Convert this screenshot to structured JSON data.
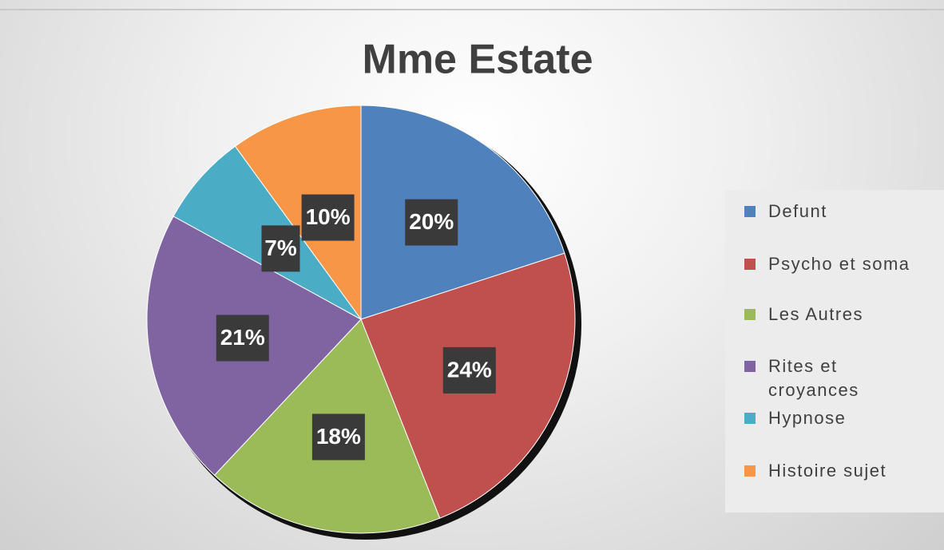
{
  "chart_data": {
    "type": "pie",
    "title": "Mme Estate",
    "categories": [
      "Defunt",
      "Psycho et soma",
      "Les Autres",
      "Rites et croyances",
      "Hypnose",
      "Histoire sujet"
    ],
    "values": [
      20,
      24,
      18,
      21,
      7,
      10
    ],
    "value_labels": [
      "20%",
      "24%",
      "18%",
      "21%",
      "7%",
      "10%"
    ],
    "colors": [
      "#4f81bd",
      "#c0504d",
      "#9bbb59",
      "#8064a2",
      "#4bacc6",
      "#f79646"
    ],
    "legend": "right"
  }
}
